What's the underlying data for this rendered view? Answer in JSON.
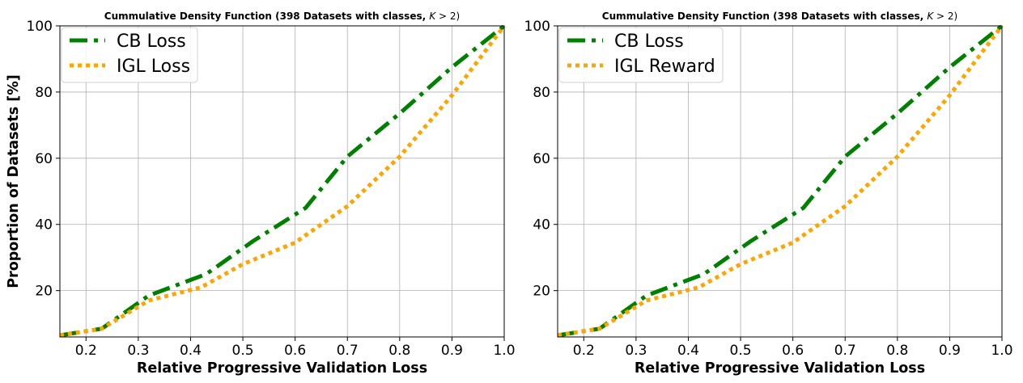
{
  "chart_data": [
    {
      "type": "line",
      "title": "Cummulative Density Function (398 Datasets with classes, ",
      "title_math_var": "K",
      "title_math_op": " > 2)",
      "xlabel": "Relative Progressive Validation Loss",
      "ylabel": "Proportion of Datasets [%]",
      "xlim": [
        0.15,
        1.0
      ],
      "ylim": [
        6,
        100
      ],
      "xticks": [
        "0.2",
        "0.3",
        "0.4",
        "0.5",
        "0.6",
        "0.7",
        "0.8",
        "0.9",
        "1.0"
      ],
      "yticks": [
        "20",
        "40",
        "60",
        "80",
        "100"
      ],
      "grid": true,
      "legend_position": "upper left",
      "series": [
        {
          "name": "CB Loss",
          "color": "#008000",
          "style": "dashdot",
          "x": [
            0.15,
            0.23,
            0.32,
            0.43,
            0.52,
            0.62,
            0.7,
            0.8,
            0.9,
            1.0
          ],
          "y": [
            6.5,
            8.5,
            18.5,
            25.0,
            35.0,
            45.0,
            60.5,
            73.5,
            87.5,
            100.0
          ]
        },
        {
          "name": "IGL Loss",
          "color": "#FFA500",
          "style": "dotted",
          "x": [
            0.15,
            0.23,
            0.32,
            0.42,
            0.5,
            0.6,
            0.7,
            0.8,
            0.9,
            1.0
          ],
          "y": [
            6.5,
            8.5,
            17.0,
            21.0,
            28.0,
            34.5,
            45.5,
            60.5,
            79.0,
            100.0
          ]
        }
      ]
    },
    {
      "type": "line",
      "title": "Cummulative Density Function (398 Datasets with classes, ",
      "title_math_var": "K",
      "title_math_op": " > 2)",
      "xlabel": "Relative Progressive Validation Loss",
      "ylabel": "",
      "xlim": [
        0.15,
        1.0
      ],
      "ylim": [
        6,
        100
      ],
      "xticks": [
        "0.2",
        "0.3",
        "0.4",
        "0.5",
        "0.6",
        "0.7",
        "0.8",
        "0.9",
        "1.0"
      ],
      "yticks": [
        "20",
        "40",
        "60",
        "80",
        "100"
      ],
      "grid": true,
      "legend_position": "upper left",
      "series": [
        {
          "name": "CB Loss",
          "color": "#008000",
          "style": "dashdot",
          "x": [
            0.15,
            0.23,
            0.32,
            0.43,
            0.52,
            0.62,
            0.7,
            0.8,
            0.9,
            1.0
          ],
          "y": [
            6.5,
            8.5,
            18.5,
            25.0,
            35.0,
            45.0,
            60.5,
            73.5,
            87.5,
            100.0
          ]
        },
        {
          "name": "IGL Reward",
          "color": "#FFA500",
          "style": "dotted",
          "x": [
            0.15,
            0.23,
            0.32,
            0.42,
            0.5,
            0.6,
            0.7,
            0.8,
            0.9,
            1.0
          ],
          "y": [
            6.5,
            8.5,
            17.0,
            21.0,
            28.0,
            34.5,
            45.5,
            60.5,
            79.0,
            100.0
          ]
        }
      ]
    }
  ]
}
